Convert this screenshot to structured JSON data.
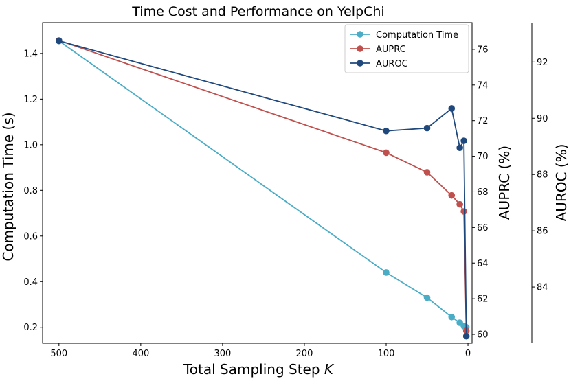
{
  "chart_data": {
    "type": "line",
    "title": "Time Cost and Performance on YelpChi",
    "xlabel": "Total Sampling Step",
    "xlabel_var": "K",
    "x_inverted": true,
    "x_ticks": [
      500,
      400,
      300,
      200,
      100,
      0
    ],
    "xlim": [
      520,
      -5
    ],
    "x": [
      500,
      100,
      50,
      20,
      10,
      5,
      2
    ],
    "axes": {
      "left": {
        "label": "Computation Time (s)",
        "lim": [
          0.13,
          1.535
        ],
        "ticks": [
          0.2,
          0.4,
          0.6,
          0.8,
          1.0,
          1.2,
          1.4
        ]
      },
      "right1": {
        "label": "AUPRC (%)",
        "lim": [
          59.5,
          77.5
        ],
        "ticks": [
          60,
          62,
          64,
          66,
          68,
          70,
          72,
          74,
          76
        ]
      },
      "right2": {
        "label": "AUROC (%)",
        "lim": [
          82.0,
          93.4
        ],
        "ticks": [
          84,
          86,
          88,
          90,
          92
        ]
      }
    },
    "series": [
      {
        "name": "Computation Time",
        "axis": "left",
        "color": "#4bacc6",
        "values": [
          1.455,
          0.44,
          0.33,
          0.245,
          0.22,
          0.205,
          0.2
        ]
      },
      {
        "name": "AUPRC",
        "axis": "right1",
        "color": "#c0504d",
        "values": [
          76.5,
          70.2,
          69.1,
          67.8,
          67.3,
          66.9,
          60.2
        ]
      },
      {
        "name": "AUROC",
        "axis": "right2",
        "color": "#1f497d",
        "values": [
          92.75,
          89.55,
          89.65,
          90.35,
          88.95,
          89.2,
          82.25
        ]
      }
    ],
    "legend": {
      "position": "top-right",
      "entries": [
        "Computation Time",
        "AUPRC",
        "AUROC"
      ]
    },
    "grid": false
  }
}
